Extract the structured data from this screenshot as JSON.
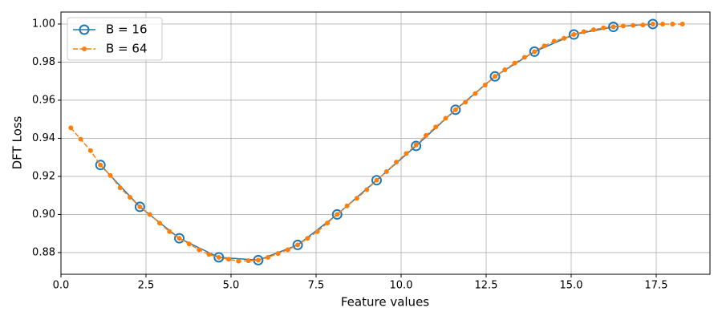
{
  "chart_data": {
    "type": "line",
    "xlabel": "Feature values",
    "ylabel": "DFT Loss",
    "xlim": [
      0,
      19.08
    ],
    "ylim": [
      0.8686,
      1.0063
    ],
    "xticks": [
      {
        "value": 0,
        "label": "0.0"
      },
      2.5,
      {
        "value": 5,
        "label": "5.0"
      },
      7.5,
      {
        "value": 10,
        "label": "10.0"
      },
      12.5,
      {
        "value": 15,
        "label": "15.0"
      },
      17.5
    ],
    "yticks": [
      0.88,
      {
        "value": 0.9,
        "label": "0.90"
      },
      0.92,
      0.94,
      0.96,
      0.98,
      {
        "value": 1,
        "label": "1.00"
      }
    ],
    "grid": true,
    "legend": "upper left",
    "series": [
      {
        "name": "B = 16",
        "color": "#1f77b4",
        "linestyle": "solid",
        "marker": "open-circle",
        "x": [
          1.16,
          2.32,
          3.48,
          4.64,
          5.8,
          6.96,
          8.12,
          9.28,
          10.44,
          11.6,
          12.76,
          13.92,
          15.08,
          16.24,
          17.4
        ],
        "values": [
          0.926,
          0.904,
          0.8875,
          0.8775,
          0.876,
          0.884,
          0.9,
          0.918,
          0.936,
          0.955,
          0.9725,
          0.9855,
          0.9945,
          0.9985,
          1.0
        ]
      },
      {
        "name": "B = 64",
        "color": "#ff7f0e",
        "linestyle": "dashed",
        "marker": "dot",
        "x": [
          0.29,
          0.58,
          0.87,
          1.16,
          1.45,
          1.74,
          2.03,
          2.32,
          2.61,
          2.9,
          3.19,
          3.48,
          3.77,
          4.06,
          4.35,
          4.64,
          4.93,
          5.22,
          5.51,
          5.8,
          6.09,
          6.38,
          6.67,
          6.96,
          7.25,
          7.54,
          7.83,
          8.12,
          8.41,
          8.7,
          8.99,
          9.28,
          9.57,
          9.86,
          10.15,
          10.44,
          10.73,
          11.02,
          11.31,
          11.6,
          11.89,
          12.18,
          12.47,
          12.76,
          13.05,
          13.34,
          13.63,
          13.92,
          14.21,
          14.5,
          14.79,
          15.08,
          15.37,
          15.66,
          15.95,
          16.24,
          16.53,
          16.82,
          17.11,
          17.4,
          17.69,
          17.98,
          18.27
        ],
        "values": [
          0.9455,
          0.9395,
          0.9335,
          0.926,
          0.9205,
          0.914,
          0.909,
          0.904,
          0.9,
          0.8955,
          0.891,
          0.8875,
          0.8845,
          0.8815,
          0.879,
          0.8775,
          0.8765,
          0.8755,
          0.8757,
          0.876,
          0.8775,
          0.8795,
          0.8815,
          0.884,
          0.8875,
          0.891,
          0.8955,
          0.9,
          0.9045,
          0.9085,
          0.913,
          0.918,
          0.9225,
          0.9275,
          0.932,
          0.9365,
          0.9415,
          0.946,
          0.9505,
          0.955,
          0.959,
          0.9635,
          0.968,
          0.9725,
          0.976,
          0.9795,
          0.9825,
          0.9855,
          0.9885,
          0.991,
          0.9925,
          0.9945,
          0.996,
          0.997,
          0.998,
          0.9985,
          0.999,
          0.9993,
          0.9995,
          1.0,
          1.0,
          1.0,
          1.0
        ]
      }
    ]
  }
}
